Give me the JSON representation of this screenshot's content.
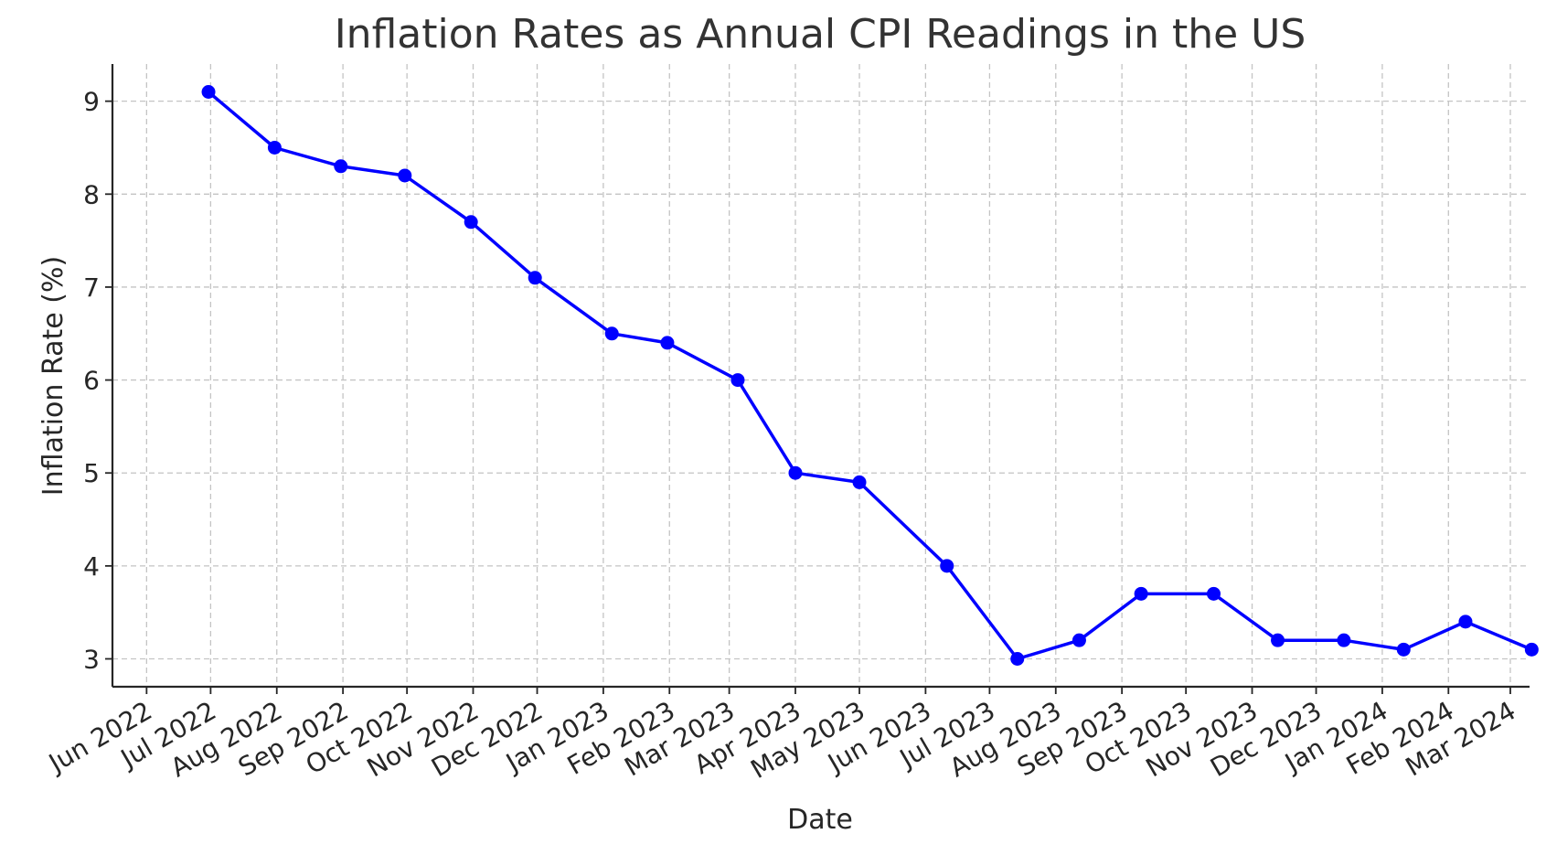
{
  "chart_data": {
    "type": "line",
    "title": "Inflation Rates as Annual CPI Readings in the US",
    "xlabel": "Date",
    "ylabel": "Inflation Rate (%)",
    "x_tick_labels": [
      "Jun 2022",
      "Jul 2022",
      "Aug 2022",
      "Sep 2022",
      "Oct 2022",
      "Nov 2022",
      "Dec 2022",
      "Jan 2023",
      "Feb 2023",
      "Mar 2023",
      "Apr 2023",
      "May 2023",
      "Jun 2023",
      "Jul 2023",
      "Aug 2023",
      "Sep 2023",
      "Oct 2023",
      "Nov 2023",
      "Dec 2023",
      "Jan 2024",
      "Feb 2024",
      "Mar 2024"
    ],
    "x_tick_dates": [
      "2022-06-01",
      "2022-07-01",
      "2022-08-01",
      "2022-09-01",
      "2022-10-01",
      "2022-11-01",
      "2022-12-01",
      "2023-01-01",
      "2023-02-01",
      "2023-03-01",
      "2023-04-01",
      "2023-05-01",
      "2023-06-01",
      "2023-07-01",
      "2023-08-01",
      "2023-09-01",
      "2023-10-01",
      "2023-11-01",
      "2023-12-01",
      "2024-01-01",
      "2024-02-01",
      "2024-03-01"
    ],
    "y_ticks": [
      3,
      4,
      5,
      6,
      7,
      8,
      9
    ],
    "ylim": [
      2.7,
      9.4
    ],
    "xlim": [
      "2022-05-16",
      "2024-03-10"
    ],
    "grid": true,
    "series": [
      {
        "color": "#0000ff",
        "marker": "circle",
        "points": [
          {
            "x": "2022-06-30",
            "y": 9.1
          },
          {
            "x": "2022-07-31",
            "y": 8.5
          },
          {
            "x": "2022-08-31",
            "y": 8.3
          },
          {
            "x": "2022-09-30",
            "y": 8.2
          },
          {
            "x": "2022-10-31",
            "y": 7.7
          },
          {
            "x": "2022-11-30",
            "y": 7.1
          },
          {
            "x": "2023-01-05",
            "y": 6.5
          },
          {
            "x": "2023-01-31",
            "y": 6.4
          },
          {
            "x": "2023-03-05",
            "y": 6.0
          },
          {
            "x": "2023-04-01",
            "y": 5.0
          },
          {
            "x": "2023-05-01",
            "y": 4.9
          },
          {
            "x": "2023-06-11",
            "y": 4.0
          },
          {
            "x": "2023-07-14",
            "y": 3.0
          },
          {
            "x": "2023-08-12",
            "y": 3.2
          },
          {
            "x": "2023-09-10",
            "y": 3.7
          },
          {
            "x": "2023-10-14",
            "y": 3.7
          },
          {
            "x": "2023-11-13",
            "y": 3.2
          },
          {
            "x": "2023-12-14",
            "y": 3.2
          },
          {
            "x": "2024-01-11",
            "y": 3.1
          },
          {
            "x": "2024-02-09",
            "y": 3.4
          },
          {
            "x": "2024-03-11",
            "y": 3.1
          }
        ]
      }
    ]
  }
}
